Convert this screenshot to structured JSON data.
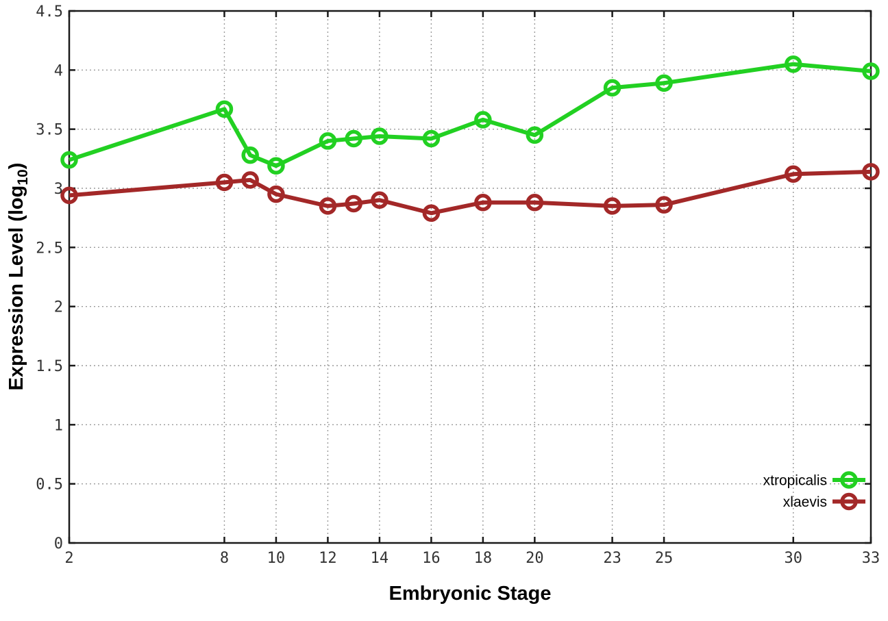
{
  "chart_data": {
    "type": "line",
    "title": "",
    "xlabel": "Embryonic Stage",
    "ylabel": "Expression Level (log10)",
    "ylabel_parts": {
      "pre": "Expression Level (log",
      "sub": "10",
      "post": ")"
    },
    "xlim": [
      2,
      33
    ],
    "ylim": [
      0,
      4.5
    ],
    "grid": true,
    "legend_position": "inside-bottom-right",
    "x_ticks": [
      2,
      8,
      10,
      12,
      14,
      16,
      18,
      20,
      23,
      25,
      30,
      33
    ],
    "y_ticks": [
      0,
      0.5,
      1,
      1.5,
      2,
      2.5,
      3,
      3.5,
      4,
      4.5
    ],
    "x": [
      2,
      8,
      9,
      10,
      12,
      13,
      14,
      16,
      18,
      20,
      23,
      25,
      30,
      33
    ],
    "series": [
      {
        "name": "xtropicalis",
        "color": "#22d022",
        "values": [
          3.24,
          3.67,
          3.28,
          3.19,
          3.4,
          3.42,
          3.44,
          3.42,
          3.58,
          3.45,
          3.85,
          3.89,
          4.05,
          3.99
        ]
      },
      {
        "name": "xlaevis",
        "color": "#a32828",
        "values": [
          2.94,
          3.05,
          3.07,
          2.95,
          2.85,
          2.87,
          2.9,
          2.79,
          2.88,
          2.88,
          2.85,
          2.86,
          3.12,
          3.14
        ]
      }
    ],
    "colors": {
      "grid": "#9a9a9a",
      "axis": "#1a1a1a",
      "tick_text": "#333333",
      "label_text": "#000000",
      "background": "#ffffff"
    }
  }
}
